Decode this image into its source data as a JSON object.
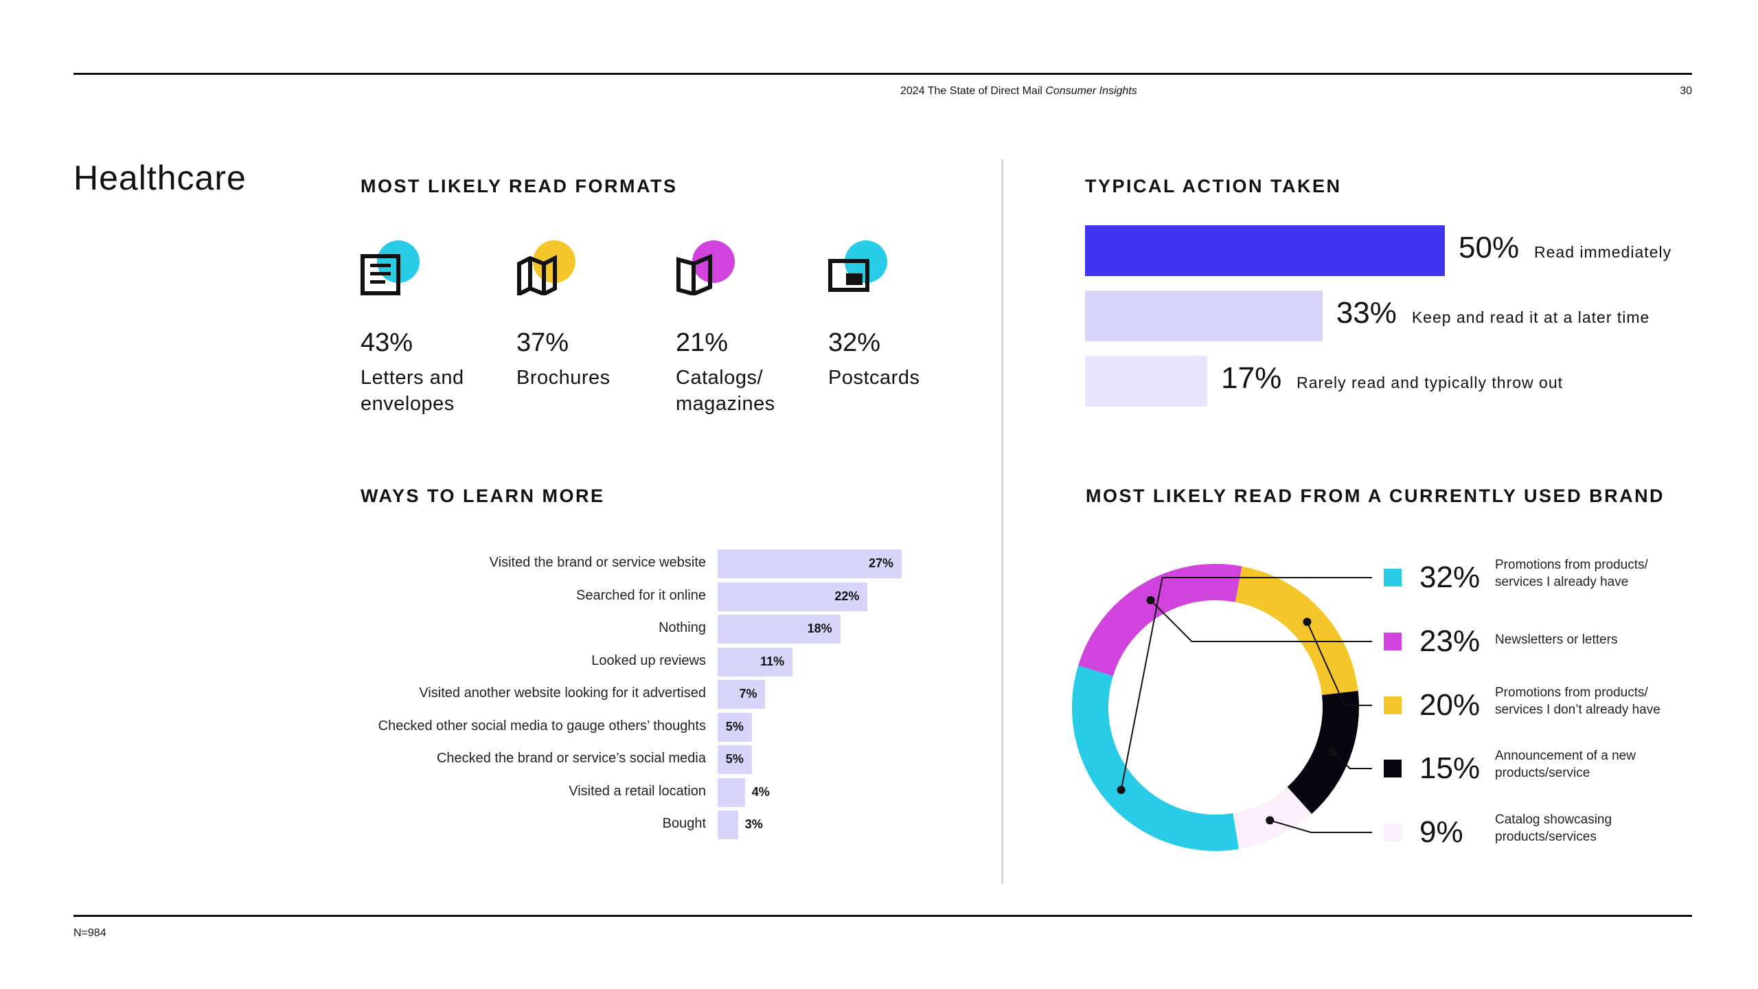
{
  "header": {
    "title_main": "2024 The State of Direct Mail ",
    "title_italic": "Consumer Insights",
    "page_number": "30"
  },
  "page_title": "Healthcare",
  "footnote": "N=984",
  "colors": {
    "blue": "#4132ee",
    "lavender": "#d8d5fb",
    "lavender_light": "#e8e6fd",
    "cyan": "#29cce6",
    "magenta": "#d143dd",
    "yellow": "#f4c62a",
    "black": "#060610",
    "pale_pink": "#fbf0fb"
  },
  "formats": {
    "title": "MOST LIKELY READ FORMATS",
    "items": [
      {
        "pct": "43%",
        "label": "Letters and\nenvelopes",
        "icon": "letter-icon",
        "dot_color": "#29cce6"
      },
      {
        "pct": "37%",
        "label": "Brochures",
        "icon": "brochure-icon",
        "dot_color": "#f4c62a"
      },
      {
        "pct": "21%",
        "label": "Catalogs/\nmagazines",
        "icon": "catalog-icon",
        "dot_color": "#d143dd"
      },
      {
        "pct": "32%",
        "label": "Postcards",
        "icon": "postcard-icon",
        "dot_color": "#29cce6"
      }
    ]
  },
  "actions": {
    "title": "TYPICAL ACTION TAKEN",
    "items": [
      {
        "pct": "50%",
        "label": "Read immediately",
        "value": 50,
        "color": "#4132ee"
      },
      {
        "pct": "33%",
        "label": "Keep and read it at a later time",
        "value": 33,
        "color": "#d8d5fb"
      },
      {
        "pct": "17%",
        "label": "Rarely read and typically throw out",
        "value": 17,
        "color": "#e8e6fd"
      }
    ]
  },
  "learn": {
    "title": "WAYS TO LEARN MORE",
    "items": [
      {
        "label": "Visited the brand or service website",
        "value": 27,
        "text": "27%"
      },
      {
        "label": "Searched for it online",
        "value": 22,
        "text": "22%"
      },
      {
        "label": "Nothing",
        "value": 18,
        "text": "18%"
      },
      {
        "label": "Looked up reviews",
        "value": 11,
        "text": "11%"
      },
      {
        "label": "Visited another website looking for it advertised",
        "value": 7,
        "text": "7%"
      },
      {
        "label": "Checked other social media to gauge others’ thoughts",
        "value": 5,
        "text": "5%"
      },
      {
        "label": "Checked the brand or service’s social media",
        "value": 5,
        "text": "5%"
      },
      {
        "label": "Visited a retail location",
        "value": 4,
        "text": "4%"
      },
      {
        "label": "Bought",
        "value": 3,
        "text": "3%"
      }
    ]
  },
  "brand": {
    "title": "MOST LIKELY READ FROM A CURRENTLY USED BRAND",
    "items": [
      {
        "pct": "32%",
        "label": "Promotions from products/\nservices I already have",
        "color": "#29cce6"
      },
      {
        "pct": "23%",
        "label": "Newsletters or letters",
        "color": "#d143dd"
      },
      {
        "pct": "20%",
        "label": "Promotions from products/\nservices I don’t already have",
        "color": "#f4c62a"
      },
      {
        "pct": "15%",
        "label": "Announcement of a new\nproducts/service",
        "color": "#060610"
      },
      {
        "pct": "9%",
        "label": "Catalog showcasing\nproducts/services",
        "color": "#fbf0fb"
      }
    ]
  },
  "chart_data": [
    {
      "type": "bar",
      "title": "TYPICAL ACTION TAKEN",
      "categories": [
        "Read immediately",
        "Keep and read it at a later time",
        "Rarely read and typically throw out"
      ],
      "values": [
        50,
        33,
        17
      ],
      "orientation": "horizontal"
    },
    {
      "type": "bar",
      "title": "WAYS TO LEARN MORE",
      "categories": [
        "Visited the brand or service website",
        "Searched for it online",
        "Nothing",
        "Looked up reviews",
        "Visited another website looking for it advertised",
        "Checked other social media to gauge others’ thoughts",
        "Checked the brand or service’s social media",
        "Visited a retail location",
        "Bought"
      ],
      "values": [
        27,
        22,
        18,
        11,
        7,
        5,
        5,
        4,
        3
      ],
      "orientation": "horizontal"
    },
    {
      "type": "pie",
      "title": "MOST LIKELY READ FROM A CURRENTLY USED BRAND",
      "categories": [
        "Promotions from products/services I already have",
        "Newsletters or letters",
        "Promotions from products/services I don’t already have",
        "Announcement of a new products/service",
        "Catalog showcasing products/services"
      ],
      "values": [
        32,
        23,
        20,
        15,
        9
      ],
      "donut": true
    }
  ]
}
